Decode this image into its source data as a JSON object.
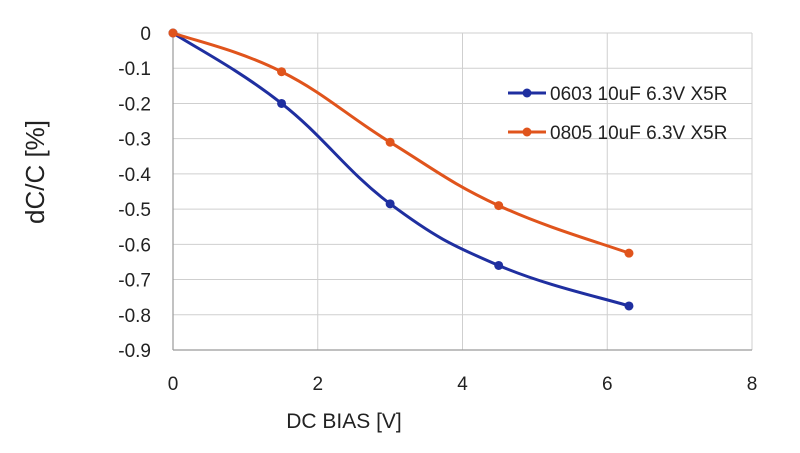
{
  "chart_data": {
    "type": "line",
    "title": "",
    "xlabel": "DC BIAS [V]",
    "ylabel": "dC/C [%]",
    "xlim": [
      0,
      8
    ],
    "ylim": [
      -0.9,
      0
    ],
    "x_ticks": [
      0,
      2,
      4,
      6,
      8
    ],
    "y_ticks": [
      0,
      -0.1,
      -0.2,
      -0.3,
      -0.4,
      -0.5,
      -0.6,
      -0.7,
      -0.8,
      -0.9
    ],
    "x_tick_labels": [
      "0",
      "2",
      "4",
      "6",
      "8"
    ],
    "y_tick_labels": [
      "0",
      "-0.1",
      "-0.2",
      "-0.3",
      "-0.4",
      "-0.5",
      "-0.6",
      "-0.7",
      "-0.8",
      "-0.9"
    ],
    "grid": true,
    "smoothed": true,
    "legend_position": "right",
    "series": [
      {
        "name": "0603 10uF 6.3V X5R",
        "color": "#1f2fa0",
        "x": [
          0,
          1.5,
          3,
          4.5,
          6.3
        ],
        "y": [
          0,
          -0.2,
          -0.485,
          -0.66,
          -0.775
        ]
      },
      {
        "name": "0805 10uF 6.3V X5R",
        "color": "#e0541c",
        "x": [
          0,
          1.5,
          3,
          4.5,
          6.3
        ],
        "y": [
          0,
          -0.11,
          -0.31,
          -0.49,
          -0.625
        ]
      }
    ]
  }
}
